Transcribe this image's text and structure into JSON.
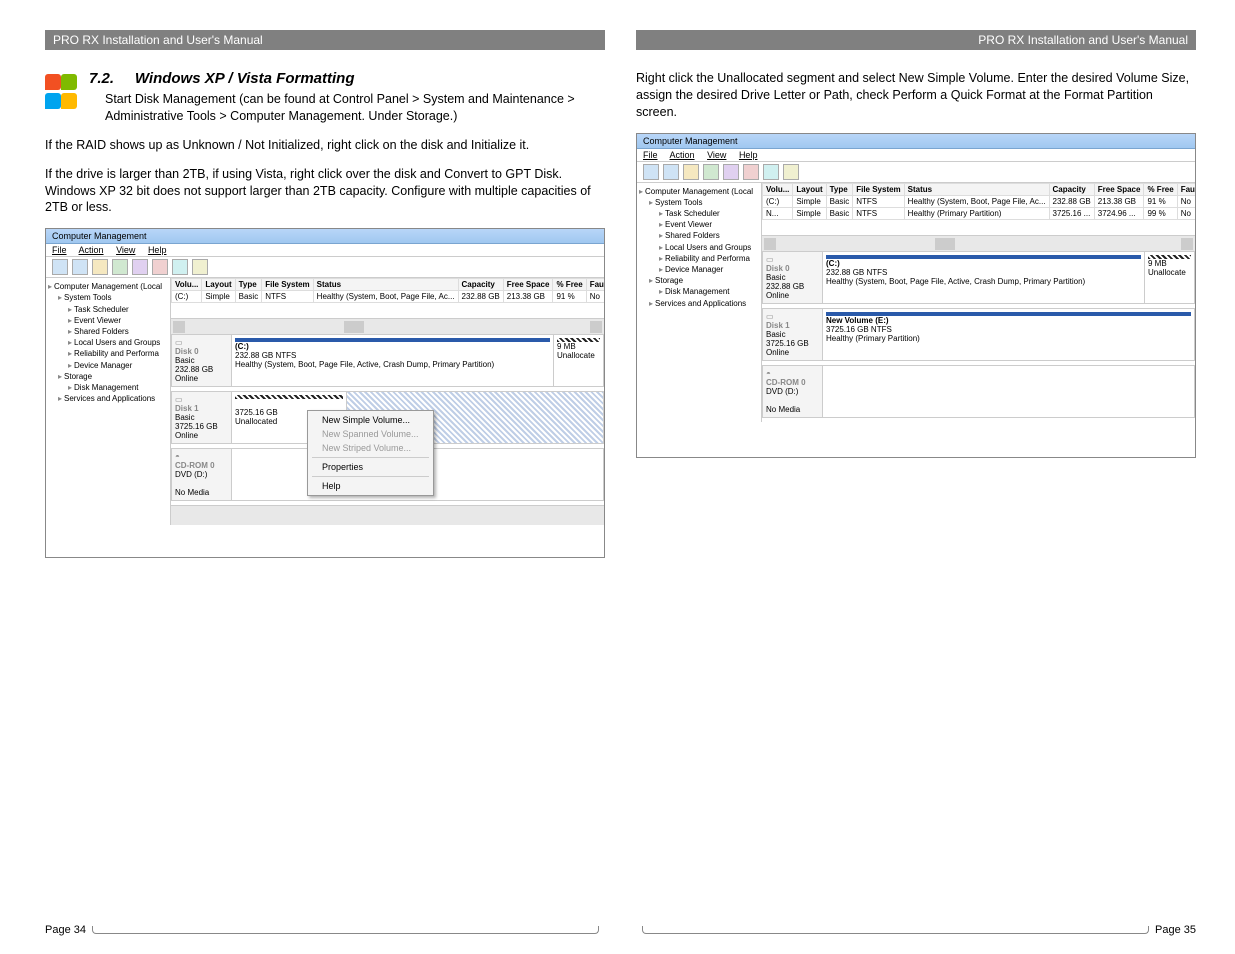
{
  "header": {
    "title": "PRO RX Installation and User's Manual"
  },
  "page_left": {
    "section_no": "7.2.",
    "section_title": "Windows XP / Vista Formatting",
    "para1": "Start Disk Management (can be found at Control Panel > System and Maintenance > Administrative Tools > Computer Management.  Under Storage.)",
    "para2": "If the RAID shows up as Unknown / Not Initialized, right click on the disk and Initialize it.",
    "para3": "If the drive is larger than 2TB, if using Vista,  right click over the disk and Convert to GPT Disk.  Windows XP 32 bit does not support larger than 2TB capacity.  Configure with multiple capacities of 2TB or less.",
    "footer": "Page 34"
  },
  "page_right": {
    "para1": "Right click the Unallocated segment and select New Simple Volume.  Enter the desired Volume Size, assign the desired Drive Letter or Path, check Perform a Quick Format at the Format Partition screen.",
    "footer": "Page 35"
  },
  "winlogo": {
    "c1": "#f25022",
    "c2": "#7fba00",
    "c3": "#00a4ef",
    "c4": "#ffb900"
  },
  "cm_window": {
    "title": "Computer Management",
    "menu": {
      "file": "File",
      "action": "Action",
      "view": "View",
      "help": "Help"
    },
    "tree": [
      {
        "t": "Computer Management (Local",
        "l": 0
      },
      {
        "t": "System Tools",
        "l": 1
      },
      {
        "t": "Task Scheduler",
        "l": 2
      },
      {
        "t": "Event Viewer",
        "l": 2
      },
      {
        "t": "Shared Folders",
        "l": 2
      },
      {
        "t": "Local Users and Groups",
        "l": 2
      },
      {
        "t": "Reliability and Performa",
        "l": 2
      },
      {
        "t": "Device Manager",
        "l": 2
      },
      {
        "t": "Storage",
        "l": 1
      },
      {
        "t": "Disk Management",
        "l": 2
      },
      {
        "t": "Services and Applications",
        "l": 1
      }
    ],
    "columns": [
      "Volu...",
      "Layout",
      "Type",
      "File System",
      "Status",
      "Capacity",
      "Free Space",
      "% Free",
      "Fault Toleran"
    ],
    "rows1": [
      [
        "(C:)",
        "Simple",
        "Basic",
        "NTFS",
        "Healthy (System, Boot, Page File, Ac...",
        "232.88 GB",
        "213.38 GB",
        "91 %",
        "No"
      ]
    ],
    "rows2": [
      [
        "(C:)",
        "Simple",
        "Basic",
        "NTFS",
        "Healthy (System, Boot, Page File, Ac...",
        "232.88 GB",
        "213.38 GB",
        "91 %",
        "No"
      ],
      [
        "N...",
        "Simple",
        "Basic",
        "NTFS",
        "Healthy (Primary Partition)",
        "3725.16 ...",
        "3724.96 ...",
        "99 %",
        "No"
      ]
    ],
    "disk0": {
      "name": "Disk 0",
      "type": "Basic",
      "size": "232.88 GB",
      "status": "Online",
      "vol_name": "(C:)",
      "vol_size": "232.88 GB NTFS",
      "vol_status": "Healthy (System, Boot, Page File, Active, Crash Dump, Primary Partition)",
      "side_size": "9 MB",
      "side_status": "Unallocate"
    },
    "disk1_a": {
      "name": "Disk 1",
      "type": "Basic",
      "size": "3725.16 GB",
      "status": "Online",
      "vol_size": "3725.16 GB",
      "vol_status": "Unallocated"
    },
    "disk1_b": {
      "name": "Disk 1",
      "type": "Basic",
      "size": "3725.16 GB",
      "status": "Online",
      "vol_name": "New Volume  (E:)",
      "vol_size": "3725.16 GB NTFS",
      "vol_status": "Healthy (Primary Partition)"
    },
    "cdrom": {
      "name": "CD-ROM 0",
      "dvd": "DVD (D:)",
      "media": "No Media"
    },
    "context": {
      "new_simple": "New Simple Volume...",
      "new_spanned": "New Spanned Volume...",
      "new_striped": "New Striped Volume...",
      "properties": "Properties",
      "help": "Help"
    }
  }
}
